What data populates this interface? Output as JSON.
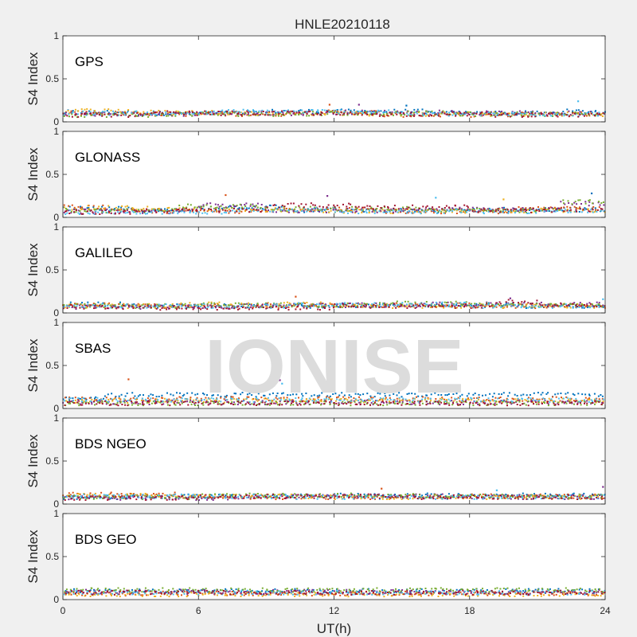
{
  "title": "HNLE20210118",
  "watermark": "IONISE",
  "colors": {
    "background": "#f0f0f0",
    "axes_background": "#ffffff",
    "axis": "#262626",
    "series": [
      "#0072BD",
      "#D95319",
      "#EDB120",
      "#7E2F8E",
      "#77AC30",
      "#4DBEEE",
      "#A2142F"
    ]
  },
  "chart_data": [
    {
      "type": "scatter",
      "label": "GPS",
      "xlabel": "",
      "ylabel": "S4 Index",
      "xlim": [
        0,
        24
      ],
      "ylim": [
        0,
        1
      ],
      "yticks": [
        0,
        0.5,
        1
      ],
      "ytick_labels": [
        "0",
        "0.5",
        "1"
      ],
      "xticks": [
        0,
        6,
        12,
        18,
        24
      ],
      "xtick_labels": [],
      "grid": false,
      "series_profiles": [
        {
          "segments": [
            [
              0,
              3,
              0.11
            ],
            [
              3,
              9,
              0.1
            ],
            [
              9,
              16,
              0.12
            ],
            [
              16,
              22,
              0.1
            ],
            [
              22,
              24,
              0.12
            ]
          ]
        },
        {
          "segments": [
            [
              0,
              4,
              0.1
            ],
            [
              4,
              10,
              0.09
            ],
            [
              10,
              14,
              0.11
            ],
            [
              14,
              20,
              0.08
            ],
            [
              20,
              24,
              0.09
            ]
          ]
        },
        {
          "segments": [
            [
              0,
              3,
              0.13
            ],
            [
              3,
              8,
              0.11
            ],
            [
              8,
              13,
              0.1
            ],
            [
              13,
              24,
              0.09
            ]
          ]
        },
        {
          "segments": [
            [
              0,
              6,
              0.09
            ],
            [
              6,
              12,
              0.1
            ],
            [
              12,
              18,
              0.11
            ],
            [
              18,
              24,
              0.1
            ]
          ]
        },
        {
          "segments": [
            [
              0,
              5,
              0.08
            ],
            [
              5,
              11,
              0.09
            ],
            [
              11,
              17,
              0.1
            ],
            [
              17,
              24,
              0.09
            ]
          ]
        },
        {
          "segments": [
            [
              0,
              7,
              0.1
            ],
            [
              7,
              15,
              0.12
            ],
            [
              15,
              24,
              0.09
            ]
          ]
        },
        {
          "segments": [
            [
              0,
              4,
              0.08
            ],
            [
              4,
              12,
              0.1
            ],
            [
              12,
              19,
              0.09
            ],
            [
              19,
              24,
              0.08
            ]
          ]
        }
      ],
      "spikes": [
        [
          11.8,
          0.2
        ],
        [
          13.1,
          0.2
        ],
        [
          22.8,
          0.24
        ],
        [
          15.2,
          0.19
        ]
      ]
    },
    {
      "type": "scatter",
      "label": "GLONASS",
      "xlabel": "",
      "ylabel": "S4 Index",
      "xlim": [
        0,
        24
      ],
      "ylim": [
        0,
        1
      ],
      "yticks": [
        0,
        0.5,
        1
      ],
      "ytick_labels": [
        "0",
        "0.5",
        "1"
      ],
      "xticks": [
        0,
        6,
        12,
        18,
        24
      ],
      "xtick_labels": [],
      "grid": false,
      "series_profiles": [
        {
          "segments": [
            [
              0,
              3,
              0.1
            ],
            [
              3,
              6,
              0.08
            ],
            [
              6,
              10,
              0.12
            ],
            [
              10,
              18,
              0.08
            ],
            [
              18,
              24,
              0.09
            ]
          ]
        },
        {
          "segments": [
            [
              0,
              2,
              0.12
            ],
            [
              2,
              8,
              0.07
            ],
            [
              8,
              14,
              0.09
            ],
            [
              14,
              20,
              0.07
            ],
            [
              20,
              24,
              0.1
            ]
          ]
        },
        {
          "segments": [
            [
              0,
              4,
              0.11
            ],
            [
              4,
              10,
              0.09
            ],
            [
              10,
              18,
              0.07
            ],
            [
              18,
              24,
              0.08
            ]
          ]
        },
        {
          "segments": [
            [
              0,
              6,
              0.07
            ],
            [
              6,
              9,
              0.14
            ],
            [
              9,
              16,
              0.08
            ],
            [
              16,
              22,
              0.09
            ],
            [
              22,
              24,
              0.16
            ]
          ]
        },
        {
          "segments": [
            [
              0,
              5,
              0.08
            ],
            [
              5,
              9,
              0.13
            ],
            [
              9,
              16,
              0.1
            ],
            [
              16,
              22,
              0.08
            ],
            [
              22,
              24,
              0.18
            ]
          ]
        },
        {
          "segments": [
            [
              0,
              8,
              0.06
            ],
            [
              8,
              12,
              0.09
            ],
            [
              12,
              24,
              0.07
            ]
          ]
        },
        {
          "segments": [
            [
              0,
              3,
              0.06
            ],
            [
              3,
              9,
              0.08
            ],
            [
              9,
              13,
              0.14
            ],
            [
              13,
              18,
              0.12
            ],
            [
              18,
              24,
              0.08
            ]
          ]
        }
      ],
      "spikes": [
        [
          7.2,
          0.26
        ],
        [
          11.7,
          0.25
        ],
        [
          16.5,
          0.23
        ],
        [
          23.4,
          0.28
        ],
        [
          19.5,
          0.21
        ]
      ]
    },
    {
      "type": "scatter",
      "label": "GALILEO",
      "xlabel": "",
      "ylabel": "S4 Index",
      "xlim": [
        0,
        24
      ],
      "ylim": [
        0,
        1
      ],
      "yticks": [
        0,
        0.5,
        1
      ],
      "ytick_labels": [
        "0",
        "0.5",
        "1"
      ],
      "xticks": [
        0,
        6,
        12,
        18,
        24
      ],
      "xtick_labels": [],
      "grid": false,
      "series_profiles": [
        {
          "segments": [
            [
              0,
              4,
              0.1
            ],
            [
              4,
              12,
              0.08
            ],
            [
              12,
              20,
              0.09
            ],
            [
              20,
              24,
              0.08
            ]
          ]
        },
        {
          "segments": [
            [
              0,
              3,
              0.09
            ],
            [
              3,
              10,
              0.08
            ],
            [
              10,
              18,
              0.09
            ],
            [
              18,
              24,
              0.08
            ]
          ]
        },
        {
          "segments": [
            [
              0,
              5,
              0.08
            ],
            [
              5,
              12,
              0.1
            ],
            [
              12,
              24,
              0.08
            ]
          ]
        },
        {
          "segments": [
            [
              0,
              8,
              0.07
            ],
            [
              8,
              16,
              0.09
            ],
            [
              16,
              24,
              0.1
            ]
          ]
        },
        {
          "segments": [
            [
              0,
              6,
              0.08
            ],
            [
              6,
              14,
              0.09
            ],
            [
              14,
              18,
              0.11
            ],
            [
              18,
              24,
              0.09
            ]
          ]
        },
        {
          "segments": [
            [
              0,
              10,
              0.08
            ],
            [
              10,
              18,
              0.1
            ],
            [
              18,
              24,
              0.08
            ]
          ]
        },
        {
          "segments": [
            [
              0,
              4,
              0.07
            ],
            [
              4,
              12,
              0.06
            ],
            [
              12,
              19,
              0.08
            ],
            [
              19,
              21,
              0.13
            ],
            [
              21,
              24,
              0.09
            ]
          ]
        }
      ],
      "spikes": [
        [
          10.3,
          0.19
        ],
        [
          19.8,
          0.17
        ],
        [
          23.9,
          0.16
        ]
      ]
    },
    {
      "type": "scatter",
      "label": "SBAS",
      "xlabel": "",
      "ylabel": "S4 Index",
      "xlim": [
        0,
        24
      ],
      "ylim": [
        0,
        1
      ],
      "yticks": [
        0,
        0.5,
        1
      ],
      "ytick_labels": [
        "0",
        "0.5",
        "1"
      ],
      "xticks": [
        0,
        6,
        12,
        18,
        24
      ],
      "xtick_labels": [],
      "grid": false,
      "series_profiles": [
        {
          "segments": [
            [
              0,
              2,
              0.12
            ],
            [
              2,
              24,
              0.16
            ]
          ]
        },
        {
          "segments": [
            [
              0,
              24,
              0.11
            ]
          ]
        },
        {
          "segments": [
            [
              0,
              24,
              0.09
            ]
          ]
        },
        {
          "segments": [
            [
              0,
              24,
              0.07
            ]
          ]
        },
        {
          "segments": [
            [
              0,
              24,
              0.06
            ]
          ]
        },
        {
          "segments": [
            [
              0,
              24,
              0.1
            ]
          ]
        },
        {
          "segments": [
            [
              0,
              24,
              0.06
            ]
          ]
        }
      ],
      "spikes": [
        [
          2.9,
          0.34
        ],
        [
          9.6,
          0.33
        ],
        [
          9.7,
          0.29
        ]
      ]
    },
    {
      "type": "scatter",
      "label": "BDS NGEO",
      "xlabel": "",
      "ylabel": "S4 Index",
      "xlim": [
        0,
        24
      ],
      "ylim": [
        0,
        1
      ],
      "yticks": [
        0,
        0.5,
        1
      ],
      "ytick_labels": [
        "0",
        "0.5",
        "1"
      ],
      "xticks": [
        0,
        6,
        12,
        18,
        24
      ],
      "xtick_labels": [],
      "grid": false,
      "series_profiles": [
        {
          "segments": [
            [
              0,
              3,
              0.08
            ],
            [
              3,
              12,
              0.09
            ],
            [
              12,
              24,
              0.1
            ]
          ]
        },
        {
          "segments": [
            [
              0,
              5,
              0.11
            ],
            [
              5,
              14,
              0.08
            ],
            [
              14,
              24,
              0.09
            ]
          ]
        },
        {
          "segments": [
            [
              0,
              4,
              0.1
            ],
            [
              4,
              12,
              0.09
            ],
            [
              12,
              24,
              0.08
            ]
          ]
        },
        {
          "segments": [
            [
              0,
              8,
              0.07
            ],
            [
              8,
              18,
              0.09
            ],
            [
              18,
              24,
              0.08
            ]
          ]
        },
        {
          "segments": [
            [
              0,
              6,
              0.08
            ],
            [
              6,
              16,
              0.1
            ],
            [
              16,
              24,
              0.09
            ]
          ]
        },
        {
          "segments": [
            [
              0,
              10,
              0.09
            ],
            [
              10,
              24,
              0.08
            ]
          ]
        },
        {
          "segments": [
            [
              0,
              6,
              0.07
            ],
            [
              6,
              14,
              0.09
            ],
            [
              14,
              24,
              0.08
            ]
          ]
        }
      ],
      "spikes": [
        [
          14.1,
          0.18
        ],
        [
          23.9,
          0.2
        ],
        [
          19.2,
          0.16
        ]
      ]
    },
    {
      "type": "scatter",
      "label": "BDS GEO",
      "xlabel": "UT(h)",
      "ylabel": "S4 Index",
      "xlim": [
        0,
        24
      ],
      "ylim": [
        0,
        1
      ],
      "yticks": [
        0,
        0.5,
        1
      ],
      "ytick_labels": [
        "0",
        "0.5",
        "1"
      ],
      "xticks": [
        0,
        6,
        12,
        18,
        24
      ],
      "xtick_labels": [
        "0",
        "6",
        "12",
        "18",
        "24"
      ],
      "grid": false,
      "series_profiles": [
        {
          "segments": [
            [
              0,
              24,
              0.1
            ]
          ]
        },
        {
          "segments": [
            [
              0,
              24,
              0.07
            ]
          ]
        },
        {
          "segments": [
            [
              0,
              24,
              0.06
            ]
          ]
        },
        {
          "segments": [
            [
              0,
              24,
              0.09
            ]
          ]
        },
        {
          "segments": [
            [
              0,
              24,
              0.11
            ]
          ]
        },
        {
          "segments": [
            [
              0,
              24,
              0.08
            ]
          ]
        },
        {
          "segments": [
            [
              0,
              24,
              0.08
            ]
          ]
        }
      ],
      "spikes": []
    }
  ]
}
